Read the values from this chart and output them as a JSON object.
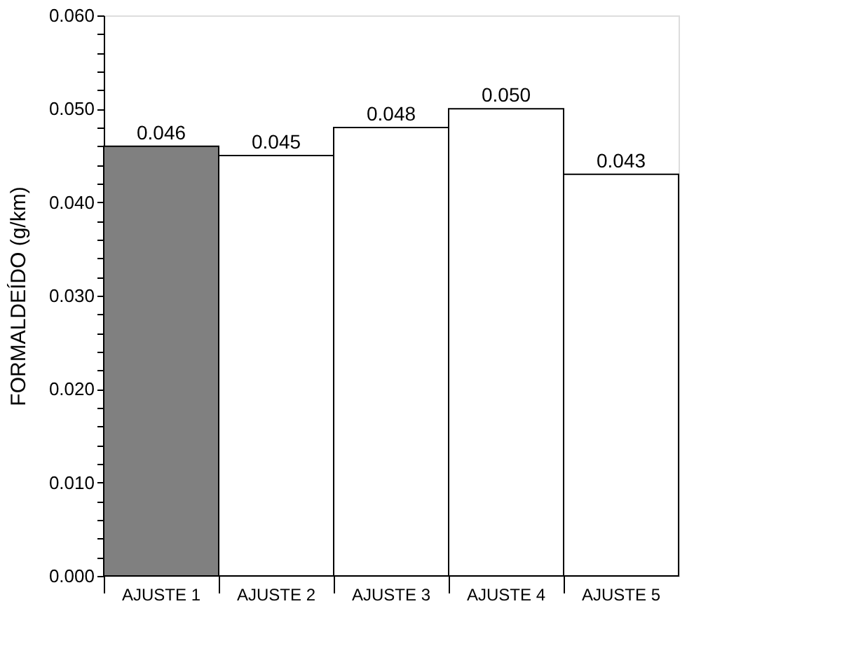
{
  "chart_data": {
    "type": "bar",
    "ylabel": "FORMALDEÍDO (g/km)",
    "categories": [
      "AJUSTE 1",
      "AJUSTE 2",
      "AJUSTE 3",
      "AJUSTE 4",
      "AJUSTE 5"
    ],
    "values": [
      0.046,
      0.045,
      0.048,
      0.05,
      0.043
    ],
    "colors": [
      "#808080",
      "#ffffff",
      "#ffffff",
      "#ffffff",
      "#ffffff"
    ],
    "value_labels": [
      "0.046",
      "0.045",
      "0.048",
      "0.050",
      "0.043"
    ],
    "ylim": [
      0,
      0.06
    ],
    "yticks": [
      {
        "value": 0,
        "label": "0.000"
      },
      {
        "value": 0.002,
        "label": null
      },
      {
        "value": 0.004,
        "label": null
      },
      {
        "value": 0.006,
        "label": null
      },
      {
        "value": 0.008,
        "label": null
      },
      {
        "value": 0.01,
        "label": "0.010"
      },
      {
        "value": 0.012,
        "label": null
      },
      {
        "value": 0.014,
        "label": null
      },
      {
        "value": 0.016,
        "label": null
      },
      {
        "value": 0.018,
        "label": null
      },
      {
        "value": 0.02,
        "label": "0.020"
      },
      {
        "value": 0.022,
        "label": null
      },
      {
        "value": 0.024,
        "label": null
      },
      {
        "value": 0.026,
        "label": null
      },
      {
        "value": 0.028,
        "label": null
      },
      {
        "value": 0.03,
        "label": "0.030"
      },
      {
        "value": 0.032,
        "label": null
      },
      {
        "value": 0.034,
        "label": null
      },
      {
        "value": 0.036,
        "label": null
      },
      {
        "value": 0.038,
        "label": null
      },
      {
        "value": 0.04,
        "label": "0.040"
      },
      {
        "value": 0.042,
        "label": null
      },
      {
        "value": 0.044,
        "label": null
      },
      {
        "value": 0.046,
        "label": null
      },
      {
        "value": 0.048,
        "label": null
      },
      {
        "value": 0.05,
        "label": "0.050"
      },
      {
        "value": 0.052,
        "label": null
      },
      {
        "value": 0.054,
        "label": null
      },
      {
        "value": 0.056,
        "label": null
      },
      {
        "value": 0.058,
        "label": null
      },
      {
        "value": 0.06,
        "label": "0.060"
      }
    ],
    "grid": false
  }
}
